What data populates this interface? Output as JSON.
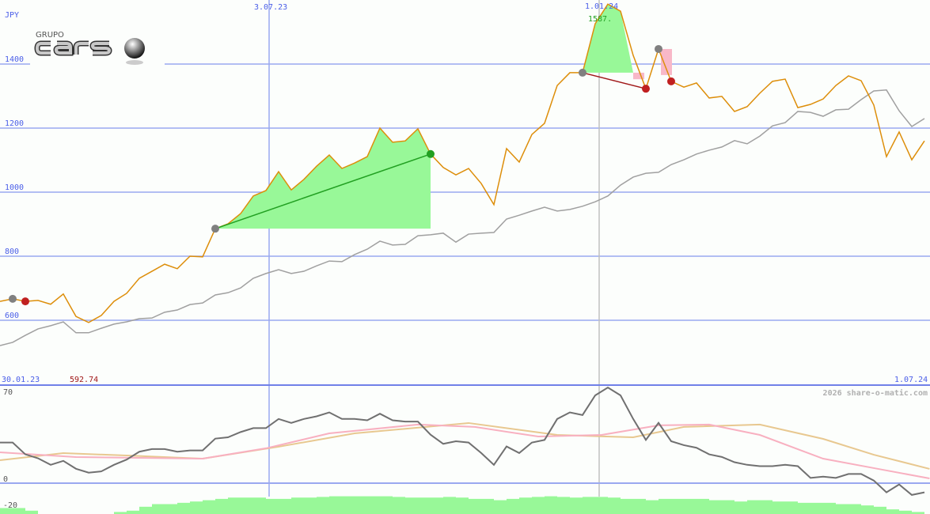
{
  "chart_data": [
    {
      "type": "line",
      "ylabel": "JPY",
      "ylim": [
        480,
        1600
      ],
      "yticks": [
        600,
        800,
        1000,
        1200,
        1400
      ],
      "date_labels": {
        "start": "30.01.23",
        "mid1": "3.07.23",
        "mid2": "1.01.24",
        "end": "1.07.24"
      },
      "annotations": {
        "min_label": "592.74",
        "max_label": "1587."
      },
      "grid": true,
      "series": [
        {
          "role": "price",
          "color": "#dd8e0a",
          "values": [
            659,
            667,
            659,
            662,
            650,
            682,
            612,
            593,
            615,
            659,
            684,
            731,
            753,
            775,
            761,
            800,
            798,
            886,
            901,
            933,
            988,
            1005,
            1064,
            1007,
            1040,
            1081,
            1116,
            1074,
            1091,
            1111,
            1200,
            1156,
            1160,
            1198,
            1119,
            1077,
            1054,
            1074,
            1027,
            961,
            1136,
            1094,
            1180,
            1215,
            1333,
            1373,
            1373,
            1526,
            1587,
            1565,
            1427,
            1323,
            1447,
            1346,
            1328,
            1341,
            1294,
            1299,
            1252,
            1267,
            1309,
            1346,
            1353,
            1264,
            1274,
            1291,
            1333,
            1363,
            1348,
            1272,
            1111,
            1188,
            1101,
            1160
          ]
        },
        {
          "role": "benchmark",
          "color": "#a0a0a0",
          "values": [
            521,
            531,
            553,
            573,
            583,
            595,
            561,
            561,
            575,
            588,
            595,
            605,
            607,
            625,
            632,
            649,
            654,
            679,
            686,
            701,
            731,
            746,
            758,
            746,
            753,
            770,
            785,
            783,
            805,
            822,
            847,
            835,
            837,
            864,
            867,
            872,
            844,
            869,
            872,
            874,
            916,
            928,
            941,
            953,
            941,
            946,
            956,
            970,
            988,
            1022,
            1047,
            1059,
            1062,
            1086,
            1101,
            1119,
            1131,
            1141,
            1161,
            1151,
            1175,
            1207,
            1217,
            1252,
            1249,
            1237,
            1257,
            1259,
            1289,
            1316,
            1319,
            1254,
            1205,
            1230
          ]
        }
      ],
      "trades": [
        {
          "type": "win",
          "entry_index": 17,
          "exit_index": 34,
          "color": "#22a022"
        },
        {
          "type": "loss",
          "entry_index": 46,
          "exit_index": 51,
          "color": "#a01818"
        }
      ],
      "markers": [
        {
          "index": 1,
          "kind": "entry"
        },
        {
          "index": 2,
          "kind": "exit-loss"
        },
        {
          "index": 17,
          "kind": "entry"
        },
        {
          "index": 34,
          "kind": "exit-win"
        },
        {
          "index": 46,
          "kind": "entry"
        },
        {
          "index": 51,
          "kind": "exit-loss"
        },
        {
          "index": 52,
          "kind": "entry"
        },
        {
          "index": 53,
          "kind": "exit-loss"
        }
      ],
      "colors": {
        "grid": "#9aa8f0",
        "label": "#4a5ee8",
        "win_fill": "#98f898",
        "loss_fill": "#f8b8c8",
        "max_label": "#22a022",
        "min_label": "#a01818"
      }
    },
    {
      "type": "line",
      "ylim": [
        -23,
        72
      ],
      "yticks": [
        70,
        0,
        -20
      ],
      "series": [
        {
          "role": "oscillator",
          "color": "#707070",
          "values": [
            31,
            31,
            22,
            19,
            14,
            17,
            11,
            8,
            9,
            14,
            18,
            24,
            26,
            26,
            24,
            25,
            25,
            34,
            35,
            39,
            42,
            42,
            49,
            46,
            49,
            51,
            54,
            49,
            49,
            48,
            53,
            48,
            47,
            47,
            37,
            30,
            32,
            31,
            23,
            14,
            28,
            23,
            31,
            33,
            49,
            54,
            52,
            67,
            73,
            67,
            49,
            33,
            46,
            32,
            29,
            27,
            22,
            20,
            16,
            14,
            13,
            13,
            14,
            13,
            4,
            5,
            4,
            7,
            7,
            2,
            -7,
            -1,
            -9,
            -7
          ]
        },
        {
          "role": "signal-1",
          "color": "#f8b0c0",
          "points": [
            [
              0,
              23.5
            ],
            [
              6,
              19.9
            ],
            [
              16,
              18.7
            ],
            [
              21,
              26.6
            ],
            [
              26,
              38
            ],
            [
              33,
              44.7
            ],
            [
              37.5,
              42.9
            ],
            [
              42.5,
              35.6
            ],
            [
              47.5,
              36.8
            ],
            [
              52,
              44.1
            ],
            [
              56,
              44.7
            ],
            [
              60,
              36.8
            ],
            [
              65,
              18.7
            ],
            [
              69,
              11.5
            ],
            [
              73.4,
              3.6
            ]
          ]
        },
        {
          "role": "signal-2",
          "color": "#e8c890",
          "points": [
            [
              0,
              17.5
            ],
            [
              5,
              22.9
            ],
            [
              10,
              21.1
            ],
            [
              16,
              18.7
            ],
            [
              22,
              27.8
            ],
            [
              28,
              38
            ],
            [
              37,
              45.9
            ],
            [
              44,
              36.8
            ],
            [
              50,
              35
            ],
            [
              54,
              42.9
            ],
            [
              60,
              44.7
            ],
            [
              65,
              33.8
            ],
            [
              69,
              21.7
            ],
            [
              73.4,
              10.9
            ]
          ]
        },
        {
          "role": "histogram",
          "color": "#98f898",
          "values": [
            -19,
            -19,
            -21,
            null,
            null,
            null,
            null,
            null,
            null,
            -22,
            -21,
            -18,
            -16,
            -16,
            -15,
            -14,
            -13,
            -12,
            -11,
            -11,
            -11,
            -12,
            -12,
            -11,
            -11,
            -10.5,
            -10,
            -10,
            -10,
            -10,
            -10,
            -10.5,
            -11,
            -11,
            -11,
            -10.5,
            -11,
            -12,
            -12,
            -13,
            -12,
            -11,
            -10.5,
            -10,
            -10.5,
            -11,
            -10.5,
            -10.5,
            -11,
            -12,
            -12,
            -13,
            -12,
            -12,
            -12,
            -12,
            -13,
            -13,
            -14,
            -13,
            -13,
            -14,
            -14,
            -15,
            -15,
            -15,
            -16,
            -16,
            -17,
            -18,
            -20,
            -21,
            -22,
            null
          ]
        }
      ]
    }
  ],
  "logo": {
    "text_small": "GRUPO",
    "text_big": "cars"
  },
  "copyright": "2026 share-o-matic.com"
}
